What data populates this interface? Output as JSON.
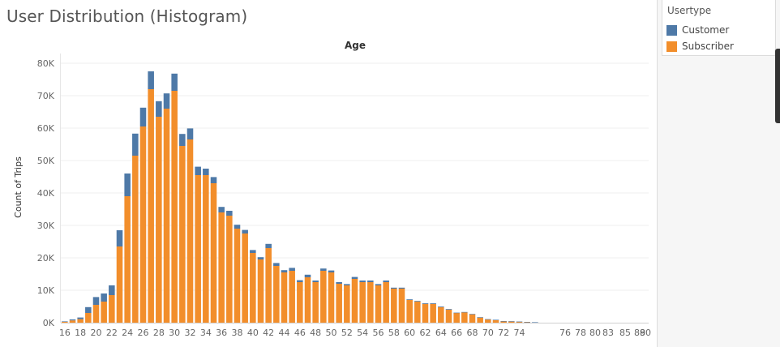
{
  "chart_data": {
    "type": "bar",
    "stacked": true,
    "title": "User Distribution (Histogram)",
    "column_header": "Age",
    "ylabel": "Count of Trips",
    "ylim": [
      0,
      82000
    ],
    "yticks": [
      0,
      10000,
      20000,
      30000,
      40000,
      50000,
      60000,
      70000,
      80000
    ],
    "ytick_labels": [
      "0K",
      "10K",
      "20K",
      "30K",
      "40K",
      "50K",
      "60K",
      "70K",
      "80K"
    ],
    "x": [
      16,
      17,
      18,
      19,
      20,
      21,
      22,
      23,
      24,
      25,
      26,
      27,
      28,
      29,
      30,
      31,
      32,
      33,
      34,
      35,
      36,
      37,
      38,
      39,
      40,
      41,
      42,
      43,
      44,
      45,
      46,
      47,
      48,
      49,
      50,
      51,
      52,
      53,
      54,
      55,
      56,
      57,
      58,
      59,
      60,
      61,
      62,
      63,
      64,
      65,
      66,
      67,
      68,
      69,
      70,
      71,
      72,
      73,
      74,
      75,
      76,
      77,
      78,
      79,
      80,
      81,
      82,
      83,
      84,
      85,
      86,
      87,
      88,
      89,
      90
    ],
    "xtick_labels": [
      "16",
      "18",
      "20",
      "22",
      "24",
      "26",
      "28",
      "30",
      "32",
      "34",
      "36",
      "38",
      "40",
      "42",
      "44",
      "46",
      "48",
      "50",
      "52",
      "54",
      "56",
      "58",
      "60",
      "62",
      "64",
      "66",
      "68",
      "70",
      "72",
      "74",
      "76",
      "78",
      "80",
      "83",
      "85",
      "88",
      "90"
    ],
    "series": [
      {
        "name": "Subscriber",
        "color": "#F28E2B",
        "values": [
          300,
          700,
          1100,
          3000,
          5500,
          6500,
          8500,
          23500,
          39000,
          51500,
          60500,
          72000,
          63500,
          66000,
          71500,
          54500,
          56500,
          45500,
          45500,
          43000,
          34000,
          33000,
          29000,
          27500,
          21500,
          19500,
          23000,
          17500,
          15500,
          16000,
          12500,
          14000,
          12500,
          16000,
          15500,
          12000,
          11500,
          13500,
          12500,
          12500,
          11500,
          12500,
          10500,
          10500,
          7000,
          6500,
          5800,
          5800,
          4800,
          4000,
          3000,
          3200,
          2600,
          1600,
          1000,
          800,
          400,
          400,
          300,
          200,
          100,
          0,
          0,
          0,
          0,
          0,
          0,
          0,
          0,
          0,
          0,
          0,
          0,
          0,
          0
        ]
      },
      {
        "name": "Customer",
        "color": "#4E79A7",
        "values": [
          100,
          300,
          500,
          1800,
          2400,
          2500,
          3000,
          5000,
          7000,
          6800,
          5800,
          5500,
          4800,
          4700,
          5300,
          3700,
          3400,
          2600,
          2000,
          1900,
          1700,
          1500,
          1200,
          1100,
          900,
          700,
          1300,
          900,
          700,
          900,
          600,
          800,
          500,
          700,
          600,
          500,
          400,
          600,
          500,
          500,
          400,
          500,
          300,
          300,
          200,
          200,
          200,
          200,
          200,
          200,
          100,
          100,
          100,
          100,
          100,
          100,
          100,
          50,
          50,
          50,
          50,
          0,
          0,
          0,
          0,
          0,
          0,
          0,
          0,
          0,
          0,
          0,
          0,
          0,
          0
        ]
      }
    ],
    "legend_position": "right"
  },
  "legend": {
    "title": "Usertype",
    "items": [
      {
        "label": "Customer",
        "color": "#4E79A7"
      },
      {
        "label": "Subscriber",
        "color": "#F28E2B"
      }
    ]
  }
}
